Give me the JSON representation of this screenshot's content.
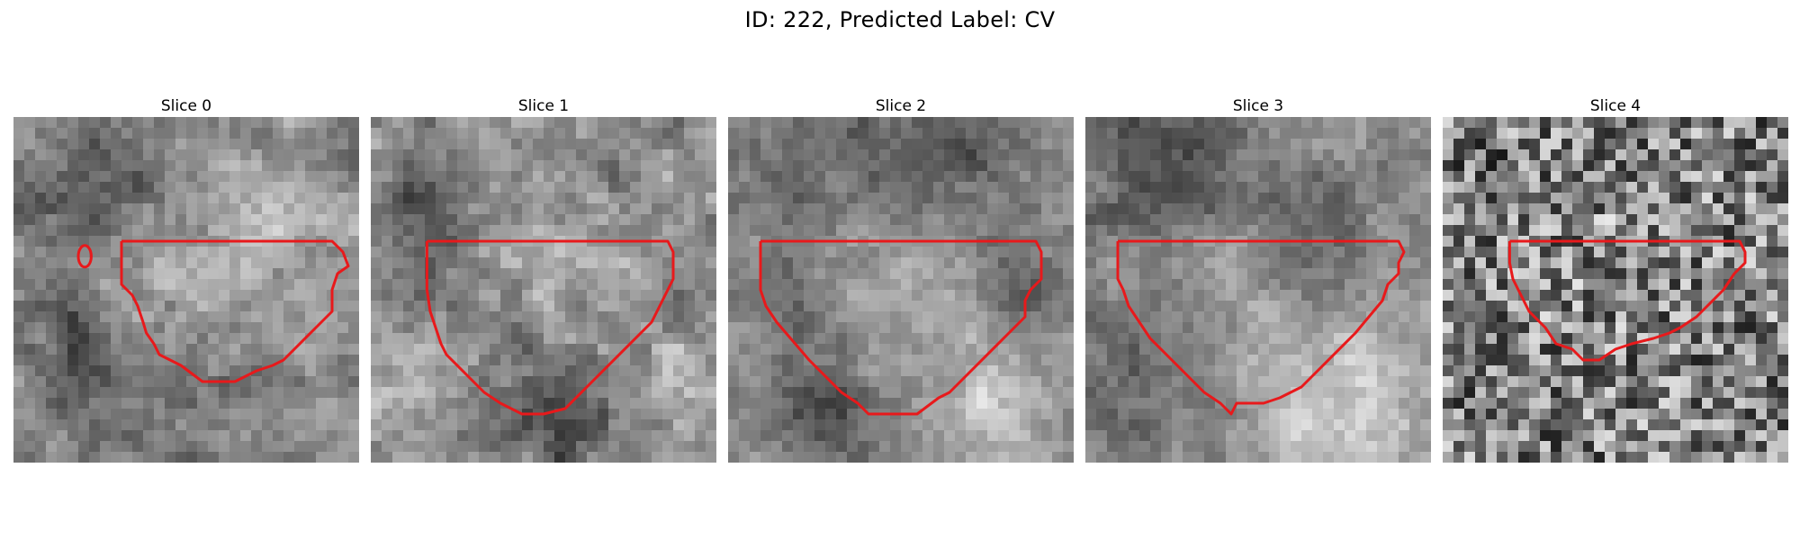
{
  "figure": {
    "title": "ID: 222, Predicted Label: CV"
  },
  "slices": [
    {
      "title": "Slice 0",
      "contour_color": "#e8191b",
      "has_second_contour": true
    },
    {
      "title": "Slice 1",
      "contour_color": "#e8191b",
      "has_second_contour": false
    },
    {
      "title": "Slice 2",
      "contour_color": "#e8191b",
      "has_second_contour": false
    },
    {
      "title": "Slice 3",
      "contour_color": "#e8191b",
      "has_second_contour": false
    },
    {
      "title": "Slice 4",
      "contour_color": "#e8191b",
      "has_second_contour": false
    }
  ]
}
